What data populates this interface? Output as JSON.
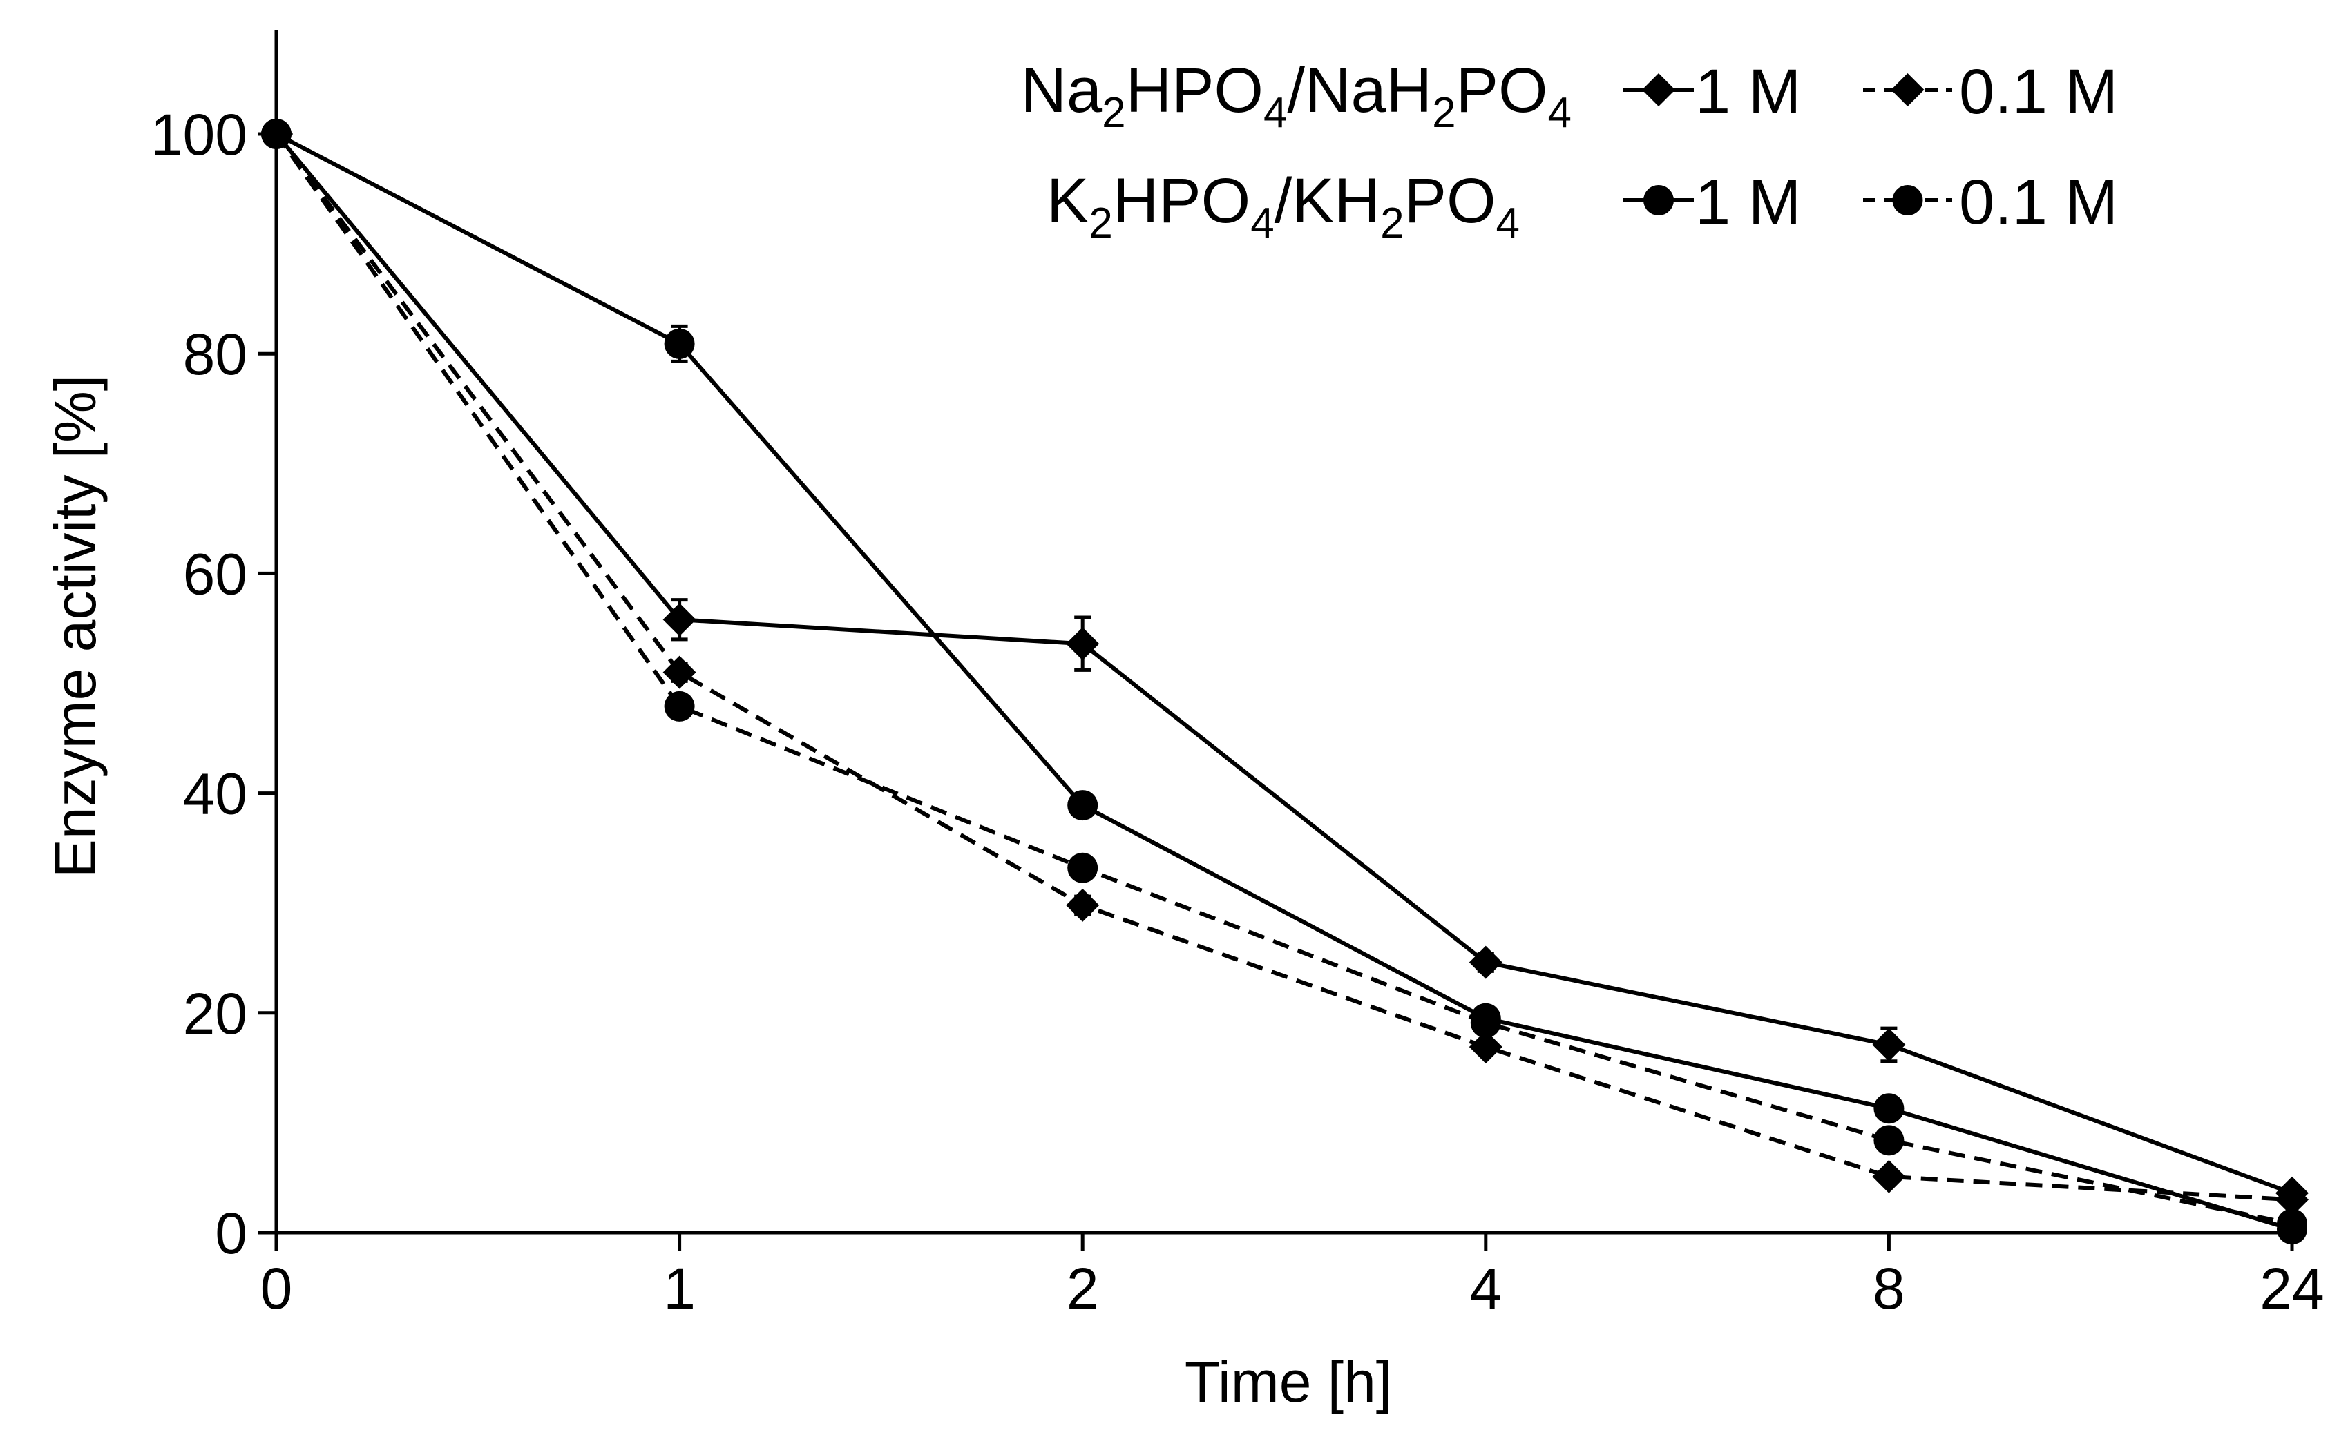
{
  "chart_data": {
    "type": "line",
    "title": "",
    "xlabel": "Time [h]",
    "ylabel": "Enzyme activity [%]",
    "categories": [
      "0",
      "1",
      "2",
      "4",
      "8",
      "24"
    ],
    "ylim": [
      0,
      100
    ],
    "yticks": [
      0,
      20,
      40,
      60,
      80,
      100
    ],
    "grid": false,
    "legend_position": "top-right",
    "legend_groups": [
      {
        "label": "Na2HPO4/NaH2PO4",
        "marker": "diamond"
      },
      {
        "label": "K2HPO4/KH2PO4",
        "marker": "circle"
      }
    ],
    "legend_items": {
      "solid": "1 M",
      "dashed": "0.1 M"
    },
    "series": [
      {
        "name": "Na2HPO4/NaH2PO4 1 M",
        "marker": "diamond",
        "dash": false,
        "values": [
          100,
          55.8,
          53.6,
          24.6,
          17.1,
          3.6
        ],
        "errors": [
          0,
          1.8,
          2.4,
          0.8,
          1.5,
          0.5
        ]
      },
      {
        "name": "Na2HPO4/NaH2PO4 0.1 M",
        "marker": "diamond",
        "dash": true,
        "values": [
          100,
          51.0,
          29.8,
          16.9,
          5.1,
          3.0
        ],
        "errors": [
          0,
          0.8,
          0.8,
          0.6,
          0.5,
          0.3
        ]
      },
      {
        "name": "K2HPO4/KH2PO4 1 M",
        "marker": "circle",
        "dash": false,
        "values": [
          100,
          80.9,
          38.9,
          19.5,
          11.3,
          0.3
        ],
        "errors": [
          0,
          1.6,
          0.8,
          0.7,
          0.6,
          0.2
        ]
      },
      {
        "name": "K2HPO4/KH2PO4 0.1 M",
        "marker": "circle",
        "dash": true,
        "values": [
          100,
          47.9,
          33.2,
          19.1,
          8.4,
          0.8
        ],
        "errors": [
          0,
          0.7,
          0.7,
          0.6,
          0.5,
          0.2
        ]
      }
    ]
  }
}
